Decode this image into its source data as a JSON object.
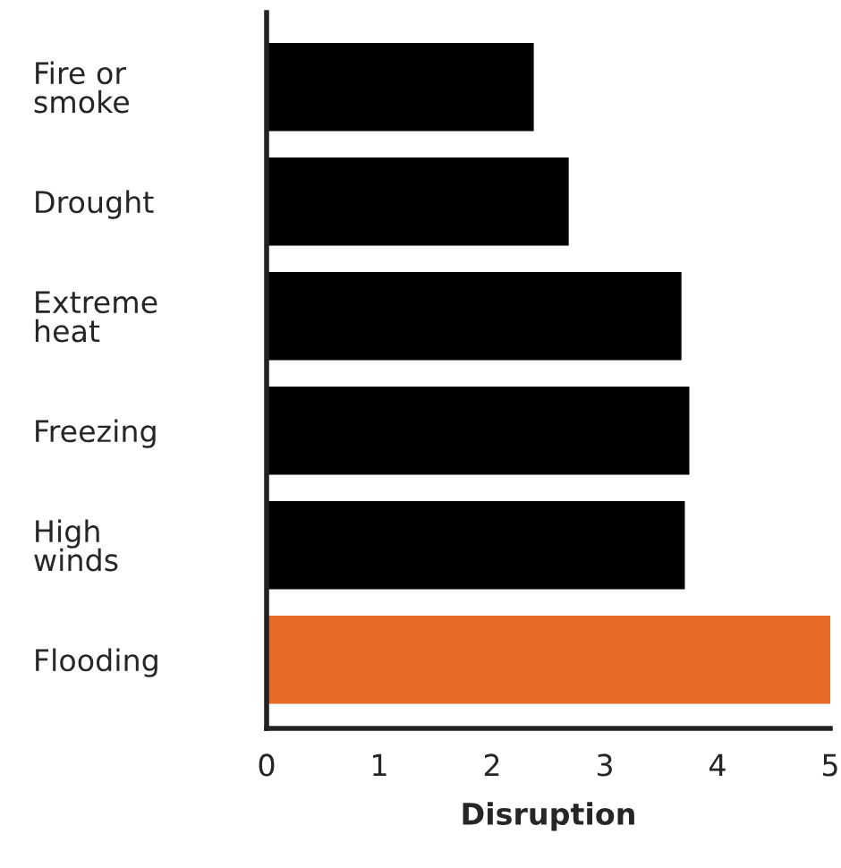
{
  "chart_data": {
    "type": "bar",
    "orientation": "horizontal",
    "xlabel": "Disruption",
    "categories": [
      "Fire or\nsmoke",
      "Drought",
      "Extreme\nheat",
      "Freezing",
      "High\nwinds",
      "Flooding"
    ],
    "values": [
      2.37,
      2.68,
      3.68,
      3.75,
      3.71,
      5.0
    ],
    "colors": [
      "#030100",
      "#030100",
      "#030100",
      "#030100",
      "#030100",
      "#e76a26"
    ],
    "xlim": [
      0,
      5
    ],
    "xticks": [
      0,
      1,
      2,
      3,
      4,
      5
    ],
    "grid": false,
    "legend": false
  }
}
